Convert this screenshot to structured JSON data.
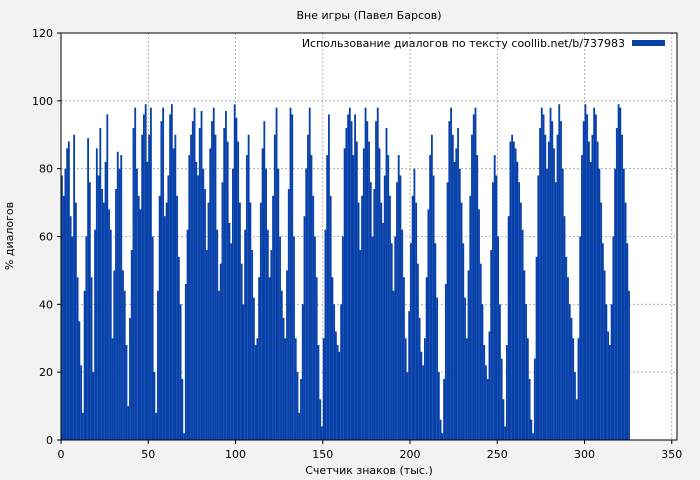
{
  "chart_data": {
    "type": "bar",
    "title": "Вне игры (Павел Барсов)",
    "xlabel": "Счетчик знаков (тыс.)",
    "ylabel": "% диалогов",
    "xlim": [
      0,
      353
    ],
    "ylim": [
      0,
      120
    ],
    "xticks": [
      0,
      50,
      100,
      150,
      200,
      250,
      300,
      350
    ],
    "yticks": [
      0,
      20,
      40,
      60,
      80,
      100,
      120
    ],
    "grid": true,
    "legend_position": "top-right",
    "colors": {
      "series": "#0841aa",
      "background": "#f2f2f2",
      "plot_background": "#ffffff",
      "grid": "#a0a0a0"
    },
    "series": [
      {
        "name": "Использование диалогов по тексту coollib.net/b/737983",
        "x_step": 1,
        "values": [
          78,
          72,
          80,
          86,
          88,
          66,
          60,
          90,
          70,
          48,
          35,
          22,
          8,
          44,
          60,
          89,
          76,
          48,
          20,
          62,
          86,
          78,
          92,
          74,
          70,
          82,
          96,
          68,
          62,
          30,
          50,
          74,
          85,
          80,
          84,
          50,
          44,
          28,
          10,
          36,
          56,
          92,
          98,
          80,
          72,
          68,
          90,
          96,
          99,
          82,
          90,
          98,
          60,
          20,
          8,
          44,
          72,
          94,
          98,
          66,
          70,
          78,
          96,
          99,
          86,
          90,
          72,
          54,
          40,
          18,
          2,
          46,
          62,
          84,
          90,
          94,
          98,
          82,
          78,
          92,
          97,
          80,
          74,
          56,
          70,
          86,
          94,
          98,
          90,
          62,
          44,
          52,
          76,
          92,
          97,
          88,
          64,
          58,
          80,
          99,
          95,
          88,
          70,
          52,
          40,
          62,
          84,
          90,
          70,
          56,
          42,
          28,
          30,
          48,
          70,
          86,
          94,
          80,
          62,
          48,
          56,
          72,
          90,
          98,
          80,
          60,
          44,
          36,
          30,
          50,
          74,
          98,
          96,
          60,
          30,
          20,
          8,
          18,
          40,
          66,
          80,
          90,
          98,
          84,
          72,
          60,
          48,
          28,
          12,
          4,
          30,
          62,
          84,
          96,
          72,
          48,
          40,
          32,
          28,
          26,
          40,
          60,
          86,
          92,
          96,
          98,
          94,
          84,
          96,
          88,
          70,
          56,
          72,
          86,
          98,
          94,
          88,
          76,
          60,
          74,
          94,
          98,
          86,
          70,
          64,
          78,
          92,
          84,
          72,
          58,
          44,
          60,
          76,
          84,
          78,
          62,
          48,
          30,
          20,
          38,
          58,
          72,
          80,
          70,
          52,
          36,
          26,
          22,
          30,
          48,
          68,
          84,
          90,
          78,
          58,
          42,
          20,
          6,
          2,
          18,
          46,
          76,
          94,
          98,
          90,
          82,
          86,
          92,
          80,
          70,
          58,
          42,
          30,
          50,
          72,
          90,
          96,
          98,
          84,
          68,
          52,
          40,
          28,
          22,
          18,
          32,
          56,
          76,
          84,
          78,
          60,
          40,
          24,
          12,
          4,
          28,
          66,
          88,
          90,
          88,
          86,
          82,
          76,
          70,
          62,
          50,
          40,
          30,
          18,
          6,
          2,
          24,
          54,
          78,
          92,
          98,
          96,
          90,
          80,
          88,
          98,
          94,
          86,
          76,
          90,
          99,
          94,
          80,
          66,
          54,
          48,
          40,
          36,
          30,
          20,
          12,
          30,
          60,
          84,
          94,
          99,
          96,
          88,
          82,
          90,
          98,
          96,
          88,
          80,
          70,
          58,
          50,
          40,
          32,
          28,
          40,
          60,
          80,
          92,
          99,
          98,
          90,
          80,
          70,
          58,
          44
        ]
      }
    ]
  }
}
